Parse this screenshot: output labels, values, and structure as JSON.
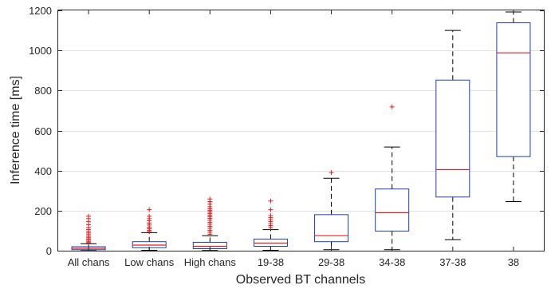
{
  "chart_data": {
    "type": "box",
    "xlabel": "Observed BT channels",
    "ylabel": "Inference time [ms]",
    "ylim": [
      0,
      1200
    ],
    "yticks": [
      0,
      200,
      400,
      600,
      800,
      1000,
      1200
    ],
    "grid": "horizontal",
    "categories": [
      "All chans",
      "Low chans",
      "High chans",
      "19-38",
      "29-38",
      "34-38",
      "37-38",
      "38"
    ],
    "boxes": [
      {
        "category": "All chans",
        "whisker_low": 0,
        "q1": 5,
        "median": 12,
        "q3": 20,
        "whisker_high": 35,
        "outliers": [
          40,
          45,
          52,
          58,
          65,
          72,
          80,
          88,
          95,
          105,
          115,
          130,
          145,
          160,
          172
        ]
      },
      {
        "category": "Low chans",
        "whisker_low": 2,
        "q1": 15,
        "median": 28,
        "q3": 45,
        "whisker_high": 90,
        "outliers": [
          95,
          102,
          110,
          118,
          128,
          138,
          150,
          160,
          172,
          205
        ]
      },
      {
        "category": "High chans",
        "whisker_low": 1,
        "q1": 10,
        "median": 22,
        "q3": 42,
        "whisker_high": 75,
        "outliers": [
          82,
          92,
          102,
          112,
          122,
          132,
          142,
          152,
          162,
          170,
          178,
          186,
          194,
          202,
          210,
          220,
          232,
          245,
          258
        ]
      },
      {
        "category": "19-38",
        "whisker_low": 2,
        "q1": 22,
        "median": 38,
        "q3": 58,
        "whisker_high": 105,
        "outliers": [
          115,
          125,
          135,
          145,
          155,
          165,
          175,
          205,
          248
        ]
      },
      {
        "category": "29-38",
        "whisker_low": 5,
        "q1": 45,
        "median": 75,
        "q3": 180,
        "whisker_high": 362,
        "outliers": [
          390
        ]
      },
      {
        "category": "34-38",
        "whisker_low": 5,
        "q1": 98,
        "median": 190,
        "q3": 308,
        "whisker_high": 518,
        "outliers": [
          718
        ]
      },
      {
        "category": "37-38",
        "whisker_low": 55,
        "q1": 268,
        "median": 405,
        "q3": 852,
        "whisker_high": 1100,
        "outliers": []
      },
      {
        "category": "38",
        "whisker_low": 245,
        "q1": 470,
        "median": 988,
        "q3": 1138,
        "whisker_high": 1192,
        "outliers": []
      }
    ]
  },
  "colors": {
    "box": "#1f3fa8",
    "median": "#e02020",
    "outlier": "#e02020",
    "whisker": "#000000",
    "grid": "#e1e1e1",
    "axis": "#262626"
  }
}
